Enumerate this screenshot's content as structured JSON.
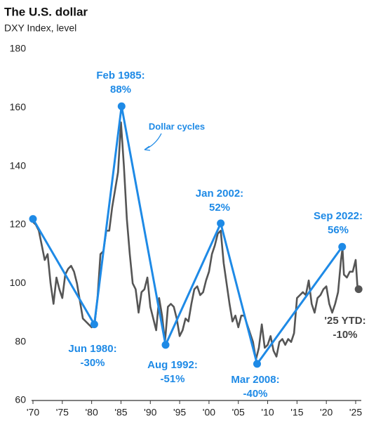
{
  "chart_data": {
    "type": "line",
    "title": "The U.S. dollar",
    "subtitle": "DXY Index, level",
    "xlim": [
      1970,
      2025
    ],
    "xticks": [
      {
        "value": 1970,
        "label": "'70"
      },
      {
        "value": 1975,
        "label": "'75"
      },
      {
        "value": 1980,
        "label": "'80"
      },
      {
        "value": 1985,
        "label": "'85"
      },
      {
        "value": 1990,
        "label": "'90"
      },
      {
        "value": 1995,
        "label": "'95"
      },
      {
        "value": 2000,
        "label": "'00"
      },
      {
        "value": 2005,
        "label": "'05"
      },
      {
        "value": 2010,
        "label": "'10"
      },
      {
        "value": 2015,
        "label": "'15"
      },
      {
        "value": 2020,
        "label": "'20"
      },
      {
        "value": 2025,
        "label": "'25"
      }
    ],
    "ylim": [
      60,
      180
    ],
    "yticks": [
      60,
      80,
      100,
      120,
      140,
      160,
      180
    ],
    "grid": false,
    "series": [
      {
        "color": "#555555",
        "x": [
          1970,
          1970.5,
          1971,
          1971.5,
          1972,
          1972.5,
          1973,
          1973.5,
          1974,
          1974.5,
          1975,
          1975.5,
          1976,
          1976.5,
          1977,
          1977.5,
          1978,
          1978.5,
          1979,
          1979.5,
          1980,
          1980.5,
          1981,
          1981.5,
          1982,
          1982.5,
          1983,
          1983.5,
          1984,
          1984.5,
          1985,
          1985.5,
          1986,
          1986.5,
          1987,
          1987.5,
          1988,
          1988.5,
          1989,
          1989.5,
          1990,
          1990.5,
          1991,
          1991.5,
          1992,
          1992.5,
          1993,
          1993.5,
          1994,
          1994.5,
          1995,
          1995.5,
          1996,
          1996.5,
          1997,
          1997.5,
          1998,
          1998.5,
          1999,
          1999.5,
          2000,
          2000.5,
          2001,
          2001.5,
          2002,
          2002.5,
          2003,
          2003.5,
          2004,
          2004.5,
          2005,
          2005.5,
          2006,
          2006.5,
          2007,
          2007.5,
          2008,
          2008.5,
          2009,
          2009.5,
          2010,
          2010.5,
          2011,
          2011.5,
          2012,
          2012.5,
          2013,
          2013.5,
          2014,
          2014.5,
          2015,
          2015.5,
          2016,
          2016.5,
          2017,
          2017.5,
          2018,
          2018.5,
          2019,
          2019.5,
          2020,
          2020.5,
          2021,
          2021.5,
          2022,
          2022.5,
          2022.75,
          2023,
          2023.5,
          2024,
          2024.5,
          2025,
          2025.3,
          2025.5
        ],
        "values": [
          121,
          120,
          118,
          113,
          108,
          110,
          100,
          93,
          102,
          98,
          95,
          103,
          105,
          106,
          104,
          100,
          94,
          88,
          87,
          86,
          85,
          86,
          95,
          110,
          111,
          118,
          118,
          126,
          132,
          138,
          155,
          140,
          122,
          110,
          100,
          98,
          90,
          97,
          98,
          102,
          92,
          88,
          84,
          95,
          89,
          80,
          92,
          93,
          92,
          88,
          82,
          84,
          88,
          87,
          93,
          98,
          99,
          96,
          97,
          101,
          104,
          110,
          113,
          117,
          118,
          107,
          100,
          93,
          87,
          89,
          85,
          89,
          89,
          86,
          83,
          80,
          74,
          78,
          86,
          78,
          79,
          82,
          77,
          75,
          80,
          81,
          79,
          81,
          80,
          83,
          95,
          96,
          97,
          96,
          101,
          93,
          90,
          95,
          96,
          98,
          99,
          93,
          90,
          93,
          97,
          108,
          112,
          103,
          102,
          104,
          104,
          108,
          99,
          98
        ]
      },
      {
        "color": "#1e8ae6",
        "x": [
          1970,
          1980.45,
          1985.1,
          1992.6,
          2002.0,
          2008.2,
          2022.7
        ],
        "values": [
          122,
          86,
          160.5,
          79,
          120.5,
          72.5,
          112.5
        ]
      }
    ],
    "annotations": [
      {
        "text": [
          "Feb 1985:",
          "88%"
        ]
      },
      {
        "text": [
          "Dollar cycles"
        ]
      },
      {
        "text": [
          "Jan 2002:",
          "52%"
        ]
      },
      {
        "text": [
          "Sep 2022:",
          "56%"
        ]
      },
      {
        "text": [
          "Jun 1980:",
          "-30%"
        ]
      },
      {
        "text": [
          "Aug 1992:",
          "-51%"
        ]
      },
      {
        "text": [
          "Mar 2008:",
          "-40%"
        ]
      },
      {
        "text": [
          "'25 YTD:",
          "-10%"
        ]
      }
    ]
  }
}
